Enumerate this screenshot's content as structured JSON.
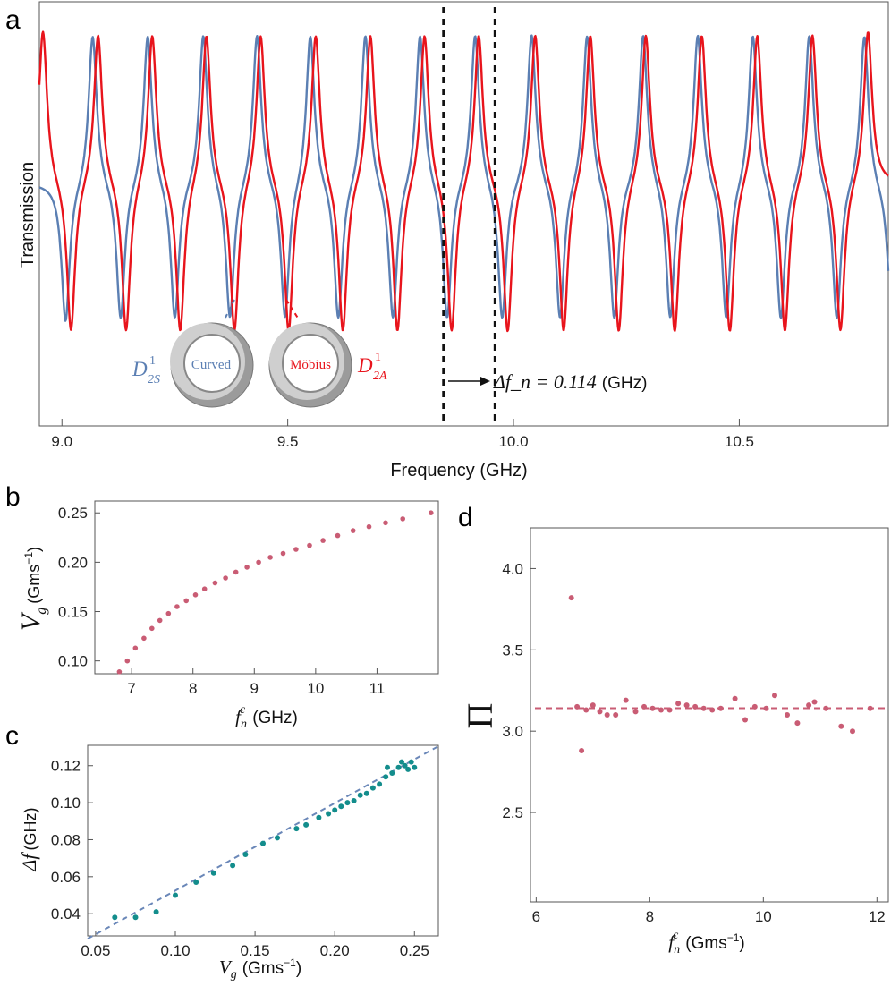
{
  "panel_letters": {
    "a": "a",
    "b": "b",
    "c": "c",
    "d": "d"
  },
  "colors": {
    "symmetric": "#5b7fb3",
    "antisymmetric": "#e8141c",
    "points_b": "#c95c74",
    "points_c": "#138d8c",
    "dashed_fit_c": "#6a87b8",
    "dashed_pi_d": "#c95c74"
  },
  "chart_data": [
    {
      "id": "a",
      "type": "line",
      "title": "",
      "xlabel": "Frequency (GHz)",
      "ylabel": "Transmission",
      "xlim": [
        8.95,
        10.83
      ],
      "xticks": [
        9.0,
        9.5,
        10.0,
        10.5
      ],
      "xtick_labels": [
        "9.0",
        "9.5",
        "10.0",
        "10.5"
      ],
      "yticks": [],
      "series": [
        {
          "name": "D_2S^1 (Curved)",
          "color": "#5b7fb3",
          "peaks": [
            9.068,
            9.19,
            9.313,
            9.432,
            9.55,
            9.672,
            9.793,
            9.915,
            10.04,
            10.163,
            10.287,
            10.408,
            10.53,
            10.655,
            10.777
          ],
          "dips": [
            9.008,
            9.13,
            9.25,
            9.372,
            9.494,
            9.612,
            9.733,
            9.853,
            9.975,
            10.103,
            10.223,
            10.347,
            10.471,
            10.592,
            10.716,
            10.838
          ]
        },
        {
          "name": "D_2A^1 (Möbius)",
          "color": "#e8141c",
          "peaks": [
            8.958,
            9.08,
            9.2,
            9.32,
            9.44,
            9.562,
            9.683,
            9.803,
            9.923,
            10.048,
            10.17,
            10.293,
            10.417,
            10.54,
            10.662,
            10.785
          ],
          "dips": [
            9.02,
            9.142,
            9.262,
            9.382,
            9.502,
            9.622,
            9.743,
            9.863,
            9.987,
            10.111,
            10.233,
            10.357,
            10.479,
            10.601,
            10.724
          ]
        }
      ],
      "markers": [
        {
          "x": 9.845,
          "style": "dashed"
        },
        {
          "x": 9.959,
          "style": "dashed"
        }
      ],
      "annotation": {
        "symbol": "Δf_n = 0.114",
        "unit": "(GHz)"
      },
      "labels": {
        "curved": "Curved",
        "mobius": "Möbius",
        "sym_base": "D",
        "sym_sup": "1",
        "sym_sub": "2S",
        "anti_base": "D",
        "anti_sup": "1",
        "anti_sub": "2A"
      }
    },
    {
      "id": "b",
      "type": "scatter",
      "xlabel": "f_n^c (GHz)",
      "ylabel": "V_g (Gms^-1)",
      "xlim": [
        6.4,
        12.0
      ],
      "ylim": [
        0.087,
        0.262
      ],
      "xticks": [
        7,
        8,
        9,
        10,
        11
      ],
      "yticks": [
        0.1,
        0.15,
        0.2,
        0.25
      ],
      "xtick_labels": [
        "7",
        "8",
        "9",
        "10",
        "11"
      ],
      "ytick_labels": [
        "0.10",
        "0.15",
        "0.20",
        "0.25"
      ],
      "x": [
        6.8,
        6.93,
        7.06,
        7.2,
        7.33,
        7.46,
        7.6,
        7.74,
        7.89,
        8.04,
        8.19,
        8.36,
        8.53,
        8.7,
        8.88,
        9.07,
        9.26,
        9.47,
        9.68,
        9.9,
        10.12,
        10.36,
        10.61,
        10.87,
        11.14,
        11.42,
        11.88
      ],
      "y": [
        0.089,
        0.1,
        0.113,
        0.123,
        0.133,
        0.141,
        0.148,
        0.155,
        0.161,
        0.167,
        0.173,
        0.179,
        0.184,
        0.19,
        0.195,
        0.2,
        0.205,
        0.209,
        0.213,
        0.217,
        0.222,
        0.227,
        0.232,
        0.236,
        0.24,
        0.244,
        0.25
      ]
    },
    {
      "id": "c",
      "type": "scatter",
      "xlabel": "V_g (Gms^-1)",
      "ylabel": "Δf (GHz)",
      "xlim": [
        0.045,
        0.265
      ],
      "ylim": [
        0.028,
        0.131
      ],
      "xticks": [
        0.05,
        0.1,
        0.15,
        0.2,
        0.25
      ],
      "yticks": [
        0.04,
        0.06,
        0.08,
        0.1,
        0.12
      ],
      "xtick_labels": [
        "0.05",
        "0.10",
        "0.15",
        "0.20",
        "0.25"
      ],
      "ytick_labels": [
        "0.04",
        "0.06",
        "0.08",
        "0.10",
        "0.12"
      ],
      "x": [
        0.062,
        0.075,
        0.088,
        0.1,
        0.113,
        0.124,
        0.136,
        0.144,
        0.155,
        0.164,
        0.176,
        0.182,
        0.19,
        0.196,
        0.2,
        0.204,
        0.208,
        0.212,
        0.216,
        0.22,
        0.224,
        0.228,
        0.232,
        0.236,
        0.24,
        0.244,
        0.248,
        0.25,
        0.242,
        0.233,
        0.246
      ],
      "y": [
        0.038,
        0.038,
        0.041,
        0.05,
        0.057,
        0.062,
        0.066,
        0.072,
        0.078,
        0.081,
        0.086,
        0.088,
        0.092,
        0.094,
        0.096,
        0.098,
        0.1,
        0.101,
        0.104,
        0.105,
        0.108,
        0.11,
        0.114,
        0.116,
        0.119,
        0.12,
        0.122,
        0.119,
        0.122,
        0.119,
        0.118
      ],
      "fit_line": {
        "x": [
          0.045,
          0.265
        ],
        "y": [
          0.0265,
          0.1305
        ],
        "style": "dashed"
      }
    },
    {
      "id": "d",
      "type": "scatter",
      "xlabel": "f_n^c (Gms^-1)",
      "ylabel": "Π",
      "xlim": [
        5.9,
        12.2
      ],
      "ylim": [
        1.95,
        4.25
      ],
      "xticks": [
        6,
        8,
        10,
        12
      ],
      "yticks": [
        2.5,
        3.0,
        3.5,
        4.0
      ],
      "xtick_labels": [
        "6",
        "8",
        "10",
        "12"
      ],
      "ytick_labels": [
        "2.5",
        "3.0",
        "3.5",
        "4.0"
      ],
      "x": [
        6.62,
        6.72,
        6.8,
        6.88,
        7.0,
        7.12,
        7.25,
        7.4,
        7.58,
        7.75,
        7.9,
        8.05,
        8.2,
        8.35,
        8.5,
        8.65,
        8.8,
        8.95,
        9.1,
        9.25,
        9.5,
        9.68,
        9.85,
        10.05,
        10.2,
        10.42,
        10.6,
        10.8,
        10.9,
        11.1,
        11.37,
        11.57,
        11.88
      ],
      "y": [
        3.82,
        3.15,
        2.88,
        3.13,
        3.16,
        3.12,
        3.1,
        3.1,
        3.19,
        3.12,
        3.15,
        3.14,
        3.13,
        3.13,
        3.17,
        3.16,
        3.15,
        3.14,
        3.13,
        3.14,
        3.2,
        3.07,
        3.15,
        3.14,
        3.22,
        3.1,
        3.05,
        3.16,
        3.18,
        3.14,
        3.03,
        3.0,
        3.14
      ],
      "reference_line": {
        "y": 3.14159,
        "style": "dashed"
      }
    }
  ]
}
